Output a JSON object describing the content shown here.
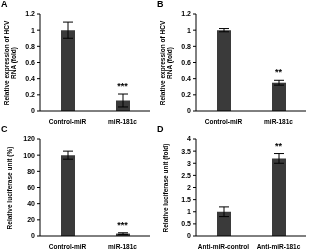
{
  "chart_data": [
    {
      "type": "bar",
      "title": "A",
      "categories": [
        "Control-miR",
        "miR-181c"
      ],
      "values": [
        1,
        0.13
      ],
      "errors": [
        0.1,
        0.08
      ],
      "color": "#3a3a3a",
      "ylabel": "Relative expression of HCV RNA (fold)",
      "ylim": [
        0,
        1.2
      ],
      "yticks": [
        0,
        0.2,
        0.4,
        0.6,
        0.8,
        1,
        1.2
      ],
      "annotations": [
        {
          "category": "miR-181c",
          "text": "***"
        }
      ],
      "grid": false
    },
    {
      "type": "bar",
      "title": "B",
      "categories": [
        "Control-miR",
        "miR-181c"
      ],
      "values": [
        1,
        0.35
      ],
      "errors": [
        0.02,
        0.03
      ],
      "color": "#3a3a3a",
      "ylabel": "Relative expression of HCV RNA (fold)",
      "ylim": [
        0,
        1.2
      ],
      "yticks": [
        0,
        0.2,
        0.4,
        0.6,
        0.8,
        1,
        1.2
      ],
      "annotations": [
        {
          "category": "miR-181c",
          "text": "**"
        }
      ],
      "grid": false
    },
    {
      "type": "bar",
      "title": "C",
      "categories": [
        "Control-miR",
        "miR-181c"
      ],
      "values": [
        100,
        3
      ],
      "errors": [
        5,
        1
      ],
      "color": "#3a3a3a",
      "ylabel": "Relative luciferase unit (%)",
      "ylim": [
        0,
        120
      ],
      "yticks": [
        0,
        20,
        40,
        60,
        80,
        100,
        120
      ],
      "annotations": [
        {
          "category": "miR-181c",
          "text": "***"
        }
      ],
      "grid": false
    },
    {
      "type": "bar",
      "title": "D",
      "categories": [
        "Anti-miR-control",
        "Anti-miR-181c"
      ],
      "values": [
        1,
        3.2
      ],
      "errors": [
        0.2,
        0.2
      ],
      "color": "#3a3a3a",
      "ylabel": "Relative luciferase unit (fold)",
      "ylim": [
        0,
        4
      ],
      "yticks": [
        0,
        0.5,
        1,
        1.5,
        2,
        2.5,
        3,
        3.5,
        4
      ],
      "annotations": [
        {
          "category": "Anti-miR-181c",
          "text": "**"
        }
      ],
      "grid": false
    }
  ]
}
